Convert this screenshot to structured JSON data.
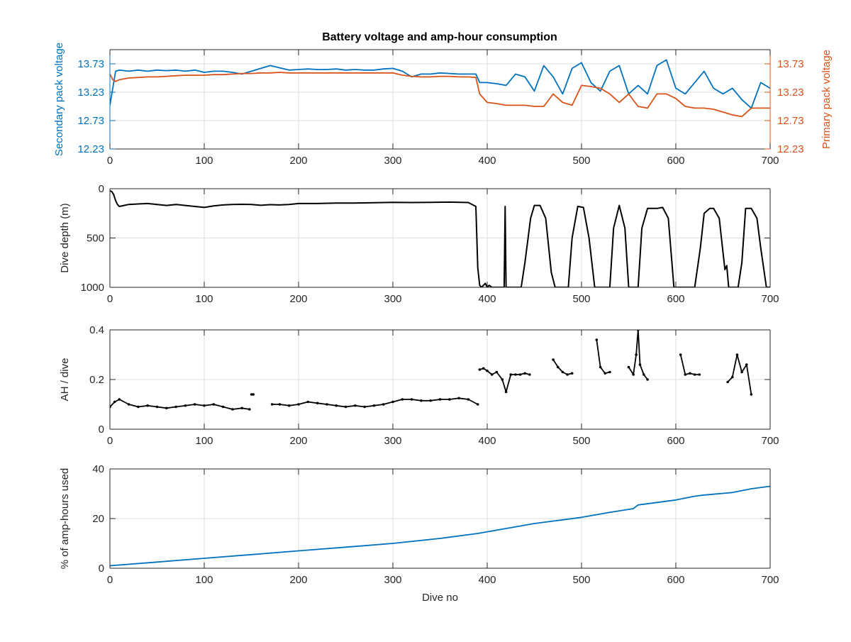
{
  "figure": {
    "title": "Battery voltage and amp-hour consumption"
  },
  "colors": {
    "secondary": "#0072BD",
    "primary": "#D95319",
    "black": "#000000",
    "blue_line": "#0072BD",
    "grid": "#DFDFDF",
    "axis": "#262626"
  },
  "chart_data": [
    {
      "type": "line",
      "panel": "voltage",
      "title": "Battery voltage and amp-hour consumption",
      "xlabel": "",
      "ylabel_left": "Secondary pack voltage",
      "ylabel_right": "Primary pack voltage",
      "xlim": [
        0,
        700
      ],
      "ylim": [
        12.23,
        13.98
      ],
      "xticks": [
        0,
        100,
        200,
        300,
        400,
        500,
        600,
        700
      ],
      "yticks_left": [
        12.23,
        12.73,
        13.23,
        13.73
      ],
      "yticks_right": [
        12.23,
        12.73,
        13.23,
        13.73
      ],
      "grid": true,
      "series": [
        {
          "axis": "left",
          "color": "#0072BD",
          "x": [
            0,
            3,
            6,
            10,
            20,
            30,
            40,
            50,
            60,
            70,
            80,
            90,
            100,
            110,
            120,
            130,
            140,
            150,
            160,
            170,
            180,
            190,
            200,
            210,
            220,
            230,
            240,
            250,
            260,
            270,
            280,
            290,
            300,
            310,
            320,
            330,
            340,
            350,
            360,
            370,
            380,
            388,
            392,
            400,
            410,
            420,
            430,
            440,
            450,
            460,
            470,
            480,
            490,
            500,
            510,
            520,
            530,
            540,
            550,
            560,
            570,
            580,
            590,
            600,
            610,
            620,
            630,
            640,
            650,
            660,
            670,
            680,
            690,
            700
          ],
          "y": [
            13.0,
            13.3,
            13.6,
            13.62,
            13.6,
            13.62,
            13.6,
            13.62,
            13.61,
            13.62,
            13.6,
            13.62,
            13.58,
            13.6,
            13.6,
            13.58,
            13.55,
            13.6,
            13.65,
            13.7,
            13.66,
            13.62,
            13.63,
            13.64,
            13.63,
            13.63,
            13.64,
            13.62,
            13.63,
            13.62,
            13.62,
            13.64,
            13.65,
            13.6,
            13.5,
            13.55,
            13.55,
            13.57,
            13.56,
            13.55,
            13.55,
            13.55,
            13.4,
            13.4,
            13.38,
            13.35,
            13.55,
            13.5,
            13.25,
            13.7,
            13.5,
            13.2,
            13.65,
            13.75,
            13.4,
            13.25,
            13.6,
            13.7,
            13.2,
            13.35,
            13.2,
            13.7,
            13.8,
            13.3,
            13.2,
            13.4,
            13.6,
            13.3,
            13.2,
            13.3,
            13.1,
            12.95,
            13.4,
            13.3
          ]
        },
        {
          "axis": "right",
          "color": "#D95319",
          "x": [
            0,
            3,
            6,
            10,
            20,
            30,
            40,
            50,
            60,
            70,
            80,
            90,
            100,
            110,
            120,
            130,
            140,
            150,
            160,
            170,
            180,
            190,
            200,
            210,
            220,
            230,
            240,
            250,
            260,
            270,
            280,
            290,
            300,
            310,
            320,
            330,
            340,
            350,
            360,
            370,
            380,
            388,
            392,
            400,
            410,
            420,
            430,
            440,
            450,
            460,
            470,
            480,
            490,
            500,
            510,
            520,
            530,
            540,
            550,
            560,
            570,
            580,
            590,
            600,
            610,
            620,
            630,
            640,
            650,
            660,
            670,
            680,
            690,
            700
          ],
          "y": [
            13.55,
            13.45,
            13.42,
            13.45,
            13.48,
            13.49,
            13.5,
            13.5,
            13.51,
            13.52,
            13.53,
            13.53,
            13.53,
            13.54,
            13.54,
            13.55,
            13.56,
            13.56,
            13.57,
            13.57,
            13.58,
            13.57,
            13.57,
            13.57,
            13.57,
            13.57,
            13.57,
            13.57,
            13.57,
            13.57,
            13.57,
            13.57,
            13.57,
            13.53,
            13.51,
            13.5,
            13.5,
            13.51,
            13.51,
            13.5,
            13.5,
            13.49,
            13.2,
            13.05,
            13.03,
            13.0,
            13.0,
            13.0,
            12.98,
            12.98,
            13.2,
            13.05,
            13.0,
            13.35,
            13.33,
            13.3,
            13.2,
            13.05,
            13.2,
            12.98,
            12.95,
            13.2,
            13.2,
            13.12,
            12.98,
            12.95,
            12.95,
            12.93,
            12.88,
            12.83,
            12.8,
            12.95,
            12.95,
            12.95
          ]
        }
      ]
    },
    {
      "type": "line",
      "panel": "depth",
      "xlabel": "",
      "ylabel": "Dive depth (m)",
      "xlim": [
        0,
        700
      ],
      "ylim": [
        1000,
        0
      ],
      "y_reversed": true,
      "xticks": [
        0,
        100,
        200,
        300,
        400,
        500,
        600,
        700
      ],
      "yticks": [
        0,
        500,
        1000
      ],
      "grid": true,
      "series": [
        {
          "color": "#000000",
          "x": [
            0,
            2,
            4,
            6,
            8,
            10,
            15,
            20,
            30,
            40,
            50,
            60,
            70,
            80,
            90,
            100,
            110,
            120,
            130,
            140,
            150,
            160,
            170,
            180,
            190,
            200,
            220,
            240,
            260,
            280,
            300,
            320,
            340,
            360,
            380,
            388,
            390,
            392,
            394,
            398,
            400,
            402,
            405,
            410,
            416,
            418,
            419,
            420,
            422,
            426,
            430,
            436,
            440,
            446,
            450,
            456,
            462,
            468,
            472,
            476,
            480,
            486,
            490,
            496,
            502,
            508,
            514,
            518,
            522,
            526,
            530,
            534,
            540,
            546,
            550,
            554,
            560,
            564,
            570,
            576,
            580,
            586,
            592,
            598,
            602,
            606,
            610,
            620,
            626,
            630,
            636,
            640,
            646,
            652,
            654,
            656,
            658,
            660,
            666,
            670,
            674,
            680,
            686,
            690,
            696,
            700
          ],
          "y": [
            20,
            30,
            60,
            120,
            160,
            180,
            170,
            160,
            155,
            150,
            160,
            170,
            160,
            170,
            180,
            190,
            175,
            165,
            160,
            158,
            160,
            168,
            162,
            165,
            160,
            150,
            150,
            145,
            145,
            142,
            138,
            140,
            138,
            136,
            140,
            180,
            800,
            980,
            1000,
            960,
            1000,
            980,
            1000,
            1000,
            1000,
            1000,
            180,
            1000,
            1000,
            1000,
            1000,
            1000,
            750,
            300,
            170,
            170,
            300,
            850,
            1000,
            1000,
            1000,
            1000,
            500,
            180,
            190,
            500,
            1000,
            1000,
            1000,
            1000,
            1000,
            400,
            170,
            400,
            1000,
            1000,
            1000,
            400,
            200,
            200,
            200,
            190,
            300,
            1000,
            1000,
            1000,
            1000,
            1000,
            600,
            250,
            200,
            200,
            300,
            820,
            780,
            1000,
            1000,
            1000,
            1000,
            750,
            200,
            200,
            300,
            600,
            1000,
            1000
          ]
        }
      ]
    },
    {
      "type": "line",
      "panel": "ah-per-dive",
      "xlabel": "",
      "ylabel": "AH / dive",
      "xlim": [
        0,
        700
      ],
      "ylim": [
        0,
        0.4
      ],
      "xticks": [
        0,
        100,
        200,
        300,
        400,
        500,
        600,
        700
      ],
      "yticks": [
        0,
        0.2,
        0.4
      ],
      "grid": true,
      "series": [
        {
          "color": "#000000",
          "segments": [
            {
              "x": [
                0,
                5,
                10,
                20,
                30,
                40,
                50,
                60,
                70,
                80,
                90,
                100,
                110,
                120,
                130,
                140,
                148
              ],
              "y": [
                0.09,
                0.11,
                0.12,
                0.1,
                0.09,
                0.095,
                0.09,
                0.085,
                0.09,
                0.095,
                0.1,
                0.095,
                0.1,
                0.09,
                0.08,
                0.085,
                0.08
              ]
            },
            {
              "x": [
                150,
                152
              ],
              "y": [
                0.14,
                0.14
              ]
            },
            {
              "x": [
                172,
                180,
                190,
                200,
                210,
                220,
                230,
                240,
                250,
                260,
                270,
                280,
                290,
                300,
                310,
                320,
                330,
                340,
                350,
                360,
                370,
                380,
                390
              ],
              "y": [
                0.1,
                0.1,
                0.095,
                0.1,
                0.11,
                0.105,
                0.1,
                0.095,
                0.09,
                0.095,
                0.09,
                0.095,
                0.1,
                0.11,
                0.12,
                0.12,
                0.115,
                0.115,
                0.12,
                0.12,
                0.125,
                0.12,
                0.1
              ]
            },
            {
              "x": [
                392,
                396,
                400,
                405,
                410,
                416,
                420,
                425,
                430,
                435,
                440,
                445
              ],
              "y": [
                0.24,
                0.245,
                0.235,
                0.22,
                0.23,
                0.2,
                0.15,
                0.22,
                0.22,
                0.22,
                0.225,
                0.22
              ]
            },
            {
              "x": [
                470,
                475,
                480,
                485,
                490
              ],
              "y": [
                0.28,
                0.25,
                0.23,
                0.22,
                0.225
              ]
            },
            {
              "x": [
                516,
                520,
                525,
                530
              ],
              "y": [
                0.36,
                0.25,
                0.225,
                0.23
              ]
            },
            {
              "x": [
                550,
                555,
                558,
                560,
                562,
                566,
                570
              ],
              "y": [
                0.25,
                0.22,
                0.3,
                0.4,
                0.26,
                0.22,
                0.2
              ]
            },
            {
              "x": [
                605,
                610,
                615,
                620,
                625
              ],
              "y": [
                0.3,
                0.22,
                0.225,
                0.22,
                0.22
              ]
            },
            {
              "x": [
                655,
                660,
                665,
                670,
                675,
                680
              ],
              "y": [
                0.19,
                0.21,
                0.3,
                0.23,
                0.26,
                0.14
              ]
            }
          ]
        }
      ]
    },
    {
      "type": "line",
      "panel": "cumulative",
      "xlabel": "Dive no",
      "ylabel": "% of amp-hours used",
      "xlim": [
        0,
        700
      ],
      "ylim": [
        0,
        40
      ],
      "xticks": [
        0,
        100,
        200,
        300,
        400,
        500,
        600,
        700
      ],
      "yticks": [
        0,
        20,
        40
      ],
      "grid": true,
      "series": [
        {
          "color": "#0072BD",
          "x": [
            0,
            50,
            100,
            150,
            200,
            250,
            300,
            350,
            390,
            420,
            450,
            480,
            500,
            530,
            555,
            560,
            580,
            600,
            620,
            630,
            660,
            680,
            700
          ],
          "y": [
            1,
            2.5,
            4,
            5.5,
            7,
            8.5,
            10,
            12,
            14,
            16,
            18,
            19.5,
            20.5,
            22.5,
            24,
            25.5,
            26.5,
            27.5,
            29,
            29.5,
            30.5,
            32,
            33
          ]
        }
      ]
    }
  ]
}
